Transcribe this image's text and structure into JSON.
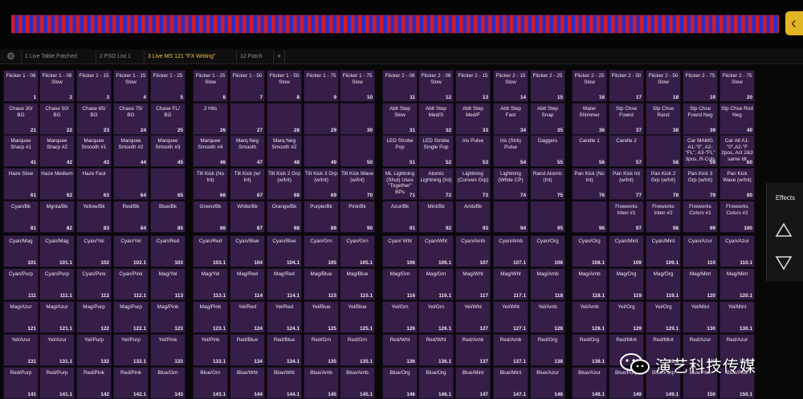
{
  "tabs": [
    {
      "label": "1 Live Table Patched",
      "active": false
    },
    {
      "label": "2 PSD List 1",
      "active": false
    },
    {
      "label": "3 Live MS 121 \"FX Writing\"",
      "active": true
    },
    {
      "label": "12 Patch",
      "active": false
    }
  ],
  "tab_add_label": "+",
  "side_panel": {
    "effects_label": "Effects"
  },
  "watermark": {
    "text": "演艺科技传媒"
  },
  "colors": {
    "cell": "#361e48",
    "accent_tab": "#f0c243",
    "stripe_red": "#d01c26",
    "stripe_blue": "#2a2ec8"
  },
  "grid_top": [
    [
      [
        "Flicker 1 - 08",
        "1"
      ],
      [
        "Flicker 1 - 08 Slow",
        "2"
      ],
      [
        "Flicker 1 - 15",
        "3"
      ],
      [
        "Flicker 1 - 15 Slow",
        "4"
      ],
      [
        "Flicker 1 - 25",
        "5"
      ],
      [
        "Flicker 1 - 25 Slow",
        "6"
      ],
      [
        "Flicker 1 - 50",
        "7"
      ],
      [
        "Flicker 1 - 50 Slow",
        "8"
      ],
      [
        "Flicker 1 - 75",
        "9"
      ],
      [
        "Flicker 1 - 75 Slow",
        "10"
      ],
      [
        "Flicker 2 - 08",
        "11"
      ],
      [
        "Flicker 2 - 08 Slow",
        "12"
      ],
      [
        "Flicker 2 - 15",
        "13"
      ],
      [
        "Flicker 2 - 15 Slow",
        "14"
      ],
      [
        "Flicker 2 - 25",
        "15"
      ],
      [
        "Flicker 2 - 25 Slow",
        "16"
      ],
      [
        "Flicker 2 - 50",
        "17"
      ],
      [
        "Flicker 2 - 50 Slow",
        "18"
      ],
      [
        "Flicker 2 - 75",
        "19"
      ],
      [
        "Flicker 2 - 75 Slow",
        "20"
      ]
    ],
    [
      [
        "Chase 30/ BG",
        "21"
      ],
      [
        "Chase 50/ BG",
        "22"
      ],
      [
        "Chase 65/ BG",
        "23"
      ],
      [
        "Chase 75/ BG",
        "24"
      ],
      [
        "Chase FL/ BG",
        "25"
      ],
      [
        "2 Hits",
        "26"
      ],
      [
        "",
        "27"
      ],
      [
        "",
        "28"
      ],
      [
        "",
        "29"
      ],
      [
        "",
        "30"
      ],
      [
        "Ablt Step Slow",
        "31"
      ],
      [
        "Ablt Step Med/S",
        "32"
      ],
      [
        "Ablt Step Med/F",
        "33"
      ],
      [
        "Ablt Step Fast",
        "34"
      ],
      [
        "Ablt Step Snap",
        "35"
      ],
      [
        "Water Shimmer",
        "36"
      ],
      [
        "Stp Chse Fowrd",
        "37"
      ],
      [
        "Stp Chse Rand",
        "38"
      ],
      [
        "Stp Chse Fowrd Neg",
        "39"
      ],
      [
        "Stp Chse Rnd Neg",
        "40"
      ]
    ],
    [
      [
        "Marquee Sharp #1",
        "41"
      ],
      [
        "Marquee Sharp #2",
        "42"
      ],
      [
        "Marquee Smooth #1",
        "43"
      ],
      [
        "Marquee Smooth #2",
        "44"
      ],
      [
        "Marquee Smooth #3",
        "45"
      ],
      [
        "Marquee Smooth #4",
        "46"
      ],
      [
        "Marq Neg Smooth",
        "47"
      ],
      [
        "Marq Neg Smooth #2",
        "48"
      ],
      [
        "",
        "49"
      ],
      [
        "",
        "50"
      ],
      [
        "LED Strobe Pop",
        "51"
      ],
      [
        "LED Strobe Single Pop",
        "52"
      ],
      [
        "Iris Pulse",
        "53"
      ],
      [
        "Iris (Strb) Pulse",
        "54"
      ],
      [
        "Daggers",
        "55"
      ],
      [
        "Candle 1",
        "56"
      ],
      [
        "Candle 2",
        "57"
      ],
      [
        "",
        "58"
      ],
      [
        "Car MAMG A1-\"0\", A2-\"FL\", A3-\"FL\" 3pos, R-Cols",
        "59"
      ],
      [
        "Car Alt A1-\"0\",A2-\"F 2pos, Act 2&3 same tilt",
        "60"
      ]
    ],
    [
      [
        "Haze Slow",
        "61"
      ],
      [
        "Haze Medium",
        "62"
      ],
      [
        "Haze Fast",
        "63"
      ],
      [
        "",
        "64"
      ],
      [
        "",
        "65"
      ],
      [
        "Tilt Kick (No Int)",
        "66"
      ],
      [
        "Tilt Kick (w/ Int)",
        "67"
      ],
      [
        "Tilt Kick 2 Grp (w/Int)",
        "68"
      ],
      [
        "Tilt Kick 3 Grp (w/Int)",
        "69"
      ],
      [
        "Tilt Kick Wave (w/Int)",
        "70"
      ],
      [
        "ML Lightning (Shut) Uses \"Together\" BPs",
        "71"
      ],
      [
        "Atomic Lightning (Int)",
        "72"
      ],
      [
        "Lightning (Conven Grp)",
        "73"
      ],
      [
        "Lightning (White CP)",
        "74"
      ],
      [
        "Rand Atomic (Int)",
        "75"
      ],
      [
        "Pan Kick (No Int)",
        "76"
      ],
      [
        "Pan Kick Int (w/Int)",
        "77"
      ],
      [
        "Pan Kick 2 Grp (w/Int)",
        "78"
      ],
      [
        "Pan Kick 3 Grp (w/Int)",
        "79"
      ],
      [
        "Pan Kick Wave (w/Int)",
        "80"
      ]
    ],
    [
      [
        "Cyan/Bk",
        "81"
      ],
      [
        "Mgnta/Bk",
        "82"
      ],
      [
        "Yellow/Bk",
        "83"
      ],
      [
        "Red/Bk",
        "84"
      ],
      [
        "Blue/Bk",
        "85"
      ],
      [
        "Green/Bk",
        "86"
      ],
      [
        "White/Bk",
        "87"
      ],
      [
        "Orange/Bk",
        "88"
      ],
      [
        "Purple/Bk",
        "89"
      ],
      [
        "Pink/Bk",
        "90"
      ],
      [
        "Azur/Bk",
        "91"
      ],
      [
        "Mint/Bk",
        "92"
      ],
      [
        "Amb/Bk",
        "93"
      ],
      [
        "",
        "94"
      ],
      [
        "",
        "95"
      ],
      [
        "",
        "96"
      ],
      [
        "Fireworks Inten #1",
        "97"
      ],
      [
        "Fireworks Inten #2",
        "98"
      ],
      [
        "Fireworks Colors #1",
        "99"
      ],
      [
        "Fireworks Colors #2",
        "100"
      ]
    ]
  ],
  "grid_bottom": [
    [
      [
        "Cyan/Mag",
        "101"
      ],
      [
        "Cyan/Mag",
        "101.1"
      ],
      [
        "Cyan/Yel",
        "102"
      ],
      [
        "Cyan/Yel",
        "102.1"
      ],
      [
        "Cyan/Red",
        "103"
      ],
      [
        "Cyan/Red",
        "103.1"
      ],
      [
        "Cyan/Blue",
        "104"
      ],
      [
        "Cyan/Blue",
        "104.1"
      ],
      [
        "Cyan/Grn",
        "105"
      ],
      [
        "Cyan/Grn",
        "105.1"
      ],
      [
        "Cyan/ Wht",
        "106"
      ],
      [
        "Cyan/Wht",
        "106.1"
      ],
      [
        "Cyan/Amb",
        "107"
      ],
      [
        "Cyan/Amb",
        "107.1"
      ],
      [
        "Cyan/Org",
        "108"
      ],
      [
        "Cyan/Org",
        "108.1"
      ],
      [
        "Cyan/Mint",
        "109"
      ],
      [
        "Cyan/Mint",
        "109.1"
      ],
      [
        "Cyan/Azur",
        "110"
      ],
      [
        "Cyan/Azur",
        "110.1"
      ]
    ],
    [
      [
        "Cyan/Purp",
        "111"
      ],
      [
        "Cyan/Purp",
        "111.1"
      ],
      [
        "Cyan/Pink",
        "112"
      ],
      [
        "Cyan/Pink",
        "112.1"
      ],
      [
        "Mag/Yel",
        "113"
      ],
      [
        "Mag/Yel",
        "113.1"
      ],
      [
        "Mag/Red",
        "114"
      ],
      [
        "Mag/Red",
        "114.1"
      ],
      [
        "Mag/Blue",
        "115"
      ],
      [
        "Mag/Blue",
        "115.1"
      ],
      [
        "Mag/Grn",
        "116"
      ],
      [
        "Mag/Grn",
        "116.1"
      ],
      [
        "Mag/Wht",
        "117"
      ],
      [
        "Mag/Wht",
        "117.1"
      ],
      [
        "Mag/Amb",
        "118"
      ],
      [
        "Mag/Amb",
        "118.1"
      ],
      [
        "Mag/Org",
        "119"
      ],
      [
        "Mag/Org",
        "119.1"
      ],
      [
        "Mag/Mint",
        "120"
      ],
      [
        "Mag/Mint",
        "120.1"
      ]
    ],
    [
      [
        "Mag/Azur",
        "121"
      ],
      [
        "Mag/Azur",
        "121.1"
      ],
      [
        "Mag/Purp",
        "122"
      ],
      [
        "Mag/Purp",
        "122.1"
      ],
      [
        "Mag/Pink",
        "123"
      ],
      [
        "Mag/Pink",
        "123.1"
      ],
      [
        "Yel/Red",
        "124"
      ],
      [
        "Yel/Red",
        "124.1"
      ],
      [
        "Yel/Blue",
        "125"
      ],
      [
        "Yel/Blue",
        "125.1"
      ],
      [
        "Yel/Grn",
        "126"
      ],
      [
        "Yel/Grn",
        "126.1"
      ],
      [
        "Yel/Wht",
        "127"
      ],
      [
        "Yel/Wht",
        "127.1"
      ],
      [
        "Yel/Amb",
        "128"
      ],
      [
        "Yel/Amb",
        "128.1"
      ],
      [
        "Yel/Org",
        "129"
      ],
      [
        "Yel/Org",
        "129.1"
      ],
      [
        "Yel/Mint",
        "130"
      ],
      [
        "Yel/Mint",
        "130.1"
      ]
    ],
    [
      [
        "Yel/Azur",
        "131"
      ],
      [
        "Yel/Azur",
        "131.1"
      ],
      [
        "Yel/Purp",
        "132"
      ],
      [
        "Yel/Purp",
        "132.1"
      ],
      [
        "Yel/Pink",
        "133"
      ],
      [
        "Yel/Pink",
        "133.1"
      ],
      [
        "Red/Blue",
        "134"
      ],
      [
        "Red/Blue",
        "134.1"
      ],
      [
        "Red/Grn",
        "135"
      ],
      [
        "Red/Grn",
        "135.1"
      ],
      [
        "Red/Wht",
        "136"
      ],
      [
        "Red/Wht",
        "136.1"
      ],
      [
        "Red/Amb",
        "137"
      ],
      [
        "Red/Amb",
        "137.1"
      ],
      [
        "Red/Org",
        "138"
      ],
      [
        "Red/Org",
        "138.1"
      ],
      [
        "Red/Mint",
        "139"
      ],
      [
        "Red/Mint",
        "139.1"
      ],
      [
        "Red/Azur",
        "140"
      ],
      [
        "Red/Azur",
        "140.1"
      ]
    ],
    [
      [
        "Red/Purp",
        "141"
      ],
      [
        "Red/Purp",
        "141.1"
      ],
      [
        "Red/Pink",
        "142"
      ],
      [
        "Red/Pink",
        "142.1"
      ],
      [
        "Blue/Grn",
        "143"
      ],
      [
        "Blue/Grn",
        "143.1"
      ],
      [
        "Blue/Wht",
        "144"
      ],
      [
        "Blue/Wht",
        "144.1"
      ],
      [
        "Blue/Amb",
        "145"
      ],
      [
        "Blue/Amb",
        "145.1"
      ],
      [
        "Blue/Org",
        "146"
      ],
      [
        "Blue/Org",
        "146.1"
      ],
      [
        "Blue/Mint",
        "147"
      ],
      [
        "Blue/Mint",
        "147.1"
      ],
      [
        "Blue/Azur",
        "148"
      ],
      [
        "Blue/Azur",
        "148.1"
      ],
      [
        "Blue/Purp",
        "149"
      ],
      [
        "Blue/Purp",
        "149.1"
      ],
      [
        "Blue/Pink",
        "150"
      ],
      [
        "Blue/Pink",
        "150.1"
      ]
    ]
  ]
}
